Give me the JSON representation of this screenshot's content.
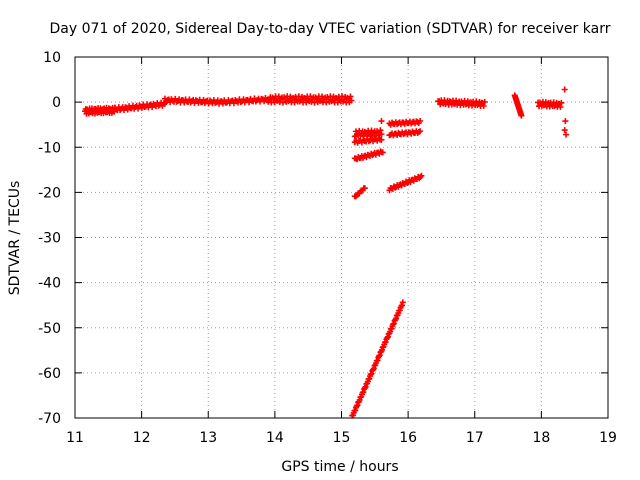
{
  "chart_data": {
    "type": "scatter",
    "title": "Day 071 of 2020, Sidereal Day-to-day VTEC variation (SDTVAR) for receiver karr",
    "xlabel": "GPS time / hours",
    "ylabel": "SDTVAR / TECUs",
    "xlim": [
      11,
      19
    ],
    "ylim": [
      -70,
      10
    ],
    "xticks": [
      "11",
      "12",
      "13",
      "14",
      "15",
      "16",
      "17",
      "18",
      "19"
    ],
    "yticks": [
      "10",
      "0",
      "-10",
      "-20",
      "-30",
      "-40",
      "-50",
      "-60",
      "-70"
    ],
    "grid": true,
    "legend": "none",
    "marker": "plus",
    "color": "#ff0000",
    "segments": [
      {
        "x0": 11.15,
        "x1": 11.6,
        "y0": -2.0,
        "y1": -1.8,
        "spread": 1.2,
        "n": 40
      },
      {
        "x0": 11.6,
        "x1": 12.35,
        "y0": -1.6,
        "y1": -0.4,
        "spread": 0.8,
        "n": 40
      },
      {
        "x0": 12.35,
        "x1": 13.2,
        "y0": 0.4,
        "y1": 0.0,
        "spread": 0.8,
        "n": 45
      },
      {
        "x0": 13.2,
        "x1": 13.9,
        "y0": 0.0,
        "y1": 0.6,
        "spread": 0.8,
        "n": 35
      },
      {
        "x0": 13.9,
        "x1": 15.15,
        "y0": 0.6,
        "y1": 0.6,
        "spread": 1.4,
        "n": 80
      },
      {
        "x0": 15.2,
        "x1": 15.6,
        "y0": -7.0,
        "y1": -6.8,
        "spread": 1.2,
        "n": 25
      },
      {
        "x0": 15.2,
        "x1": 15.6,
        "y0": -8.8,
        "y1": -8.2,
        "spread": 0.6,
        "n": 20
      },
      {
        "x0": 15.2,
        "x1": 15.62,
        "y0": -12.6,
        "y1": -11.0,
        "spread": 0.5,
        "n": 25
      },
      {
        "x0": 15.2,
        "x1": 15.35,
        "y0": -21.0,
        "y1": -19.0,
        "spread": 0.3,
        "n": 10
      },
      {
        "x0": 15.72,
        "x1": 16.18,
        "y0": -4.8,
        "y1": -4.4,
        "spread": 0.5,
        "n": 25
      },
      {
        "x0": 15.72,
        "x1": 16.18,
        "y0": -7.2,
        "y1": -6.6,
        "spread": 0.5,
        "n": 25
      },
      {
        "x0": 15.72,
        "x1": 16.2,
        "y0": -19.3,
        "y1": -16.5,
        "spread": 0.5,
        "n": 30
      },
      {
        "x0": 15.15,
        "x1": 15.92,
        "y0": -70.0,
        "y1": -44.5,
        "spread": 0.3,
        "n": 70
      },
      {
        "x0": 16.45,
        "x1": 17.15,
        "y0": 0.0,
        "y1": -0.4,
        "spread": 1.0,
        "n": 45
      },
      {
        "x0": 17.6,
        "x1": 17.7,
        "y0": 1.5,
        "y1": -3.0,
        "spread": 0.0,
        "n": 18
      },
      {
        "x0": 17.95,
        "x1": 18.3,
        "y0": -0.4,
        "y1": -0.6,
        "spread": 1.0,
        "n": 25
      }
    ],
    "points": [
      {
        "x": 15.6,
        "y": -4.2
      },
      {
        "x": 18.35,
        "y": 2.8
      },
      {
        "x": 18.36,
        "y": -4.2
      },
      {
        "x": 18.35,
        "y": -6.2
      },
      {
        "x": 18.37,
        "y": -7.2
      }
    ]
  }
}
